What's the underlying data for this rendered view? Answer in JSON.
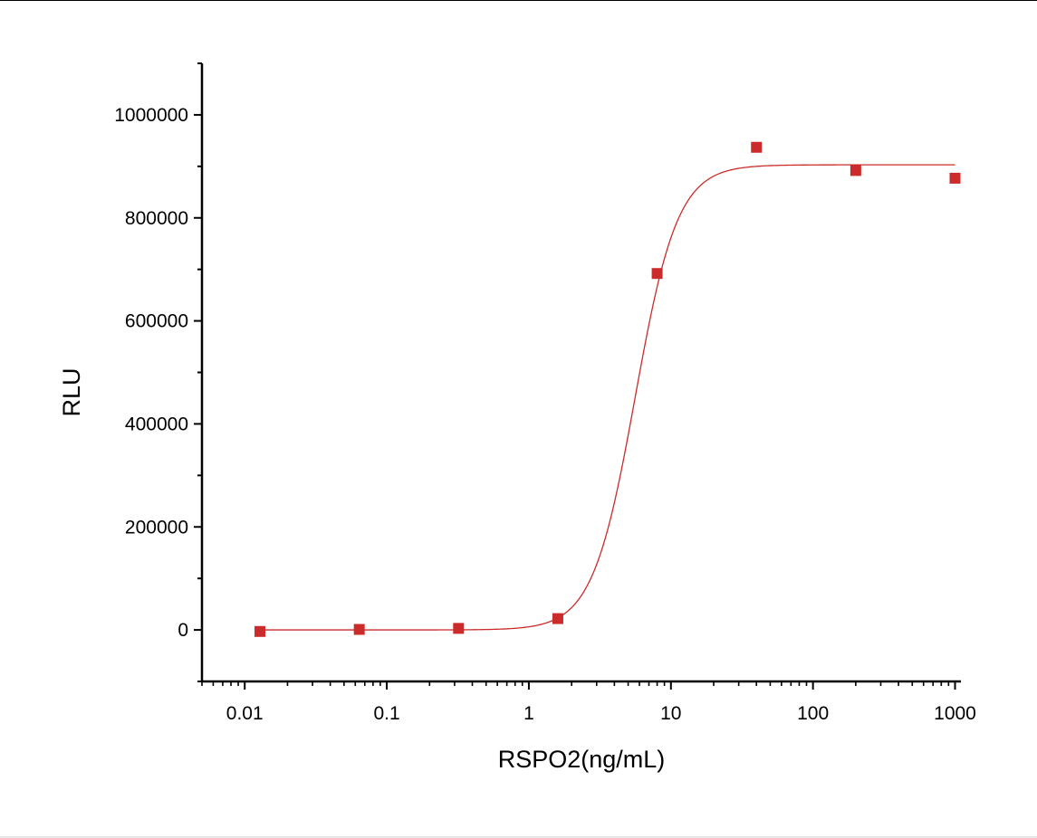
{
  "chart_data": {
    "type": "scatter",
    "title": "",
    "xlabel": "RSPO2(ng/mL)",
    "ylabel": "RLU",
    "x_scale": "log",
    "xlim": [
      0.005,
      1100
    ],
    "ylim": [
      -100000,
      1100000
    ],
    "x_ticks": [
      0.01,
      0.1,
      1,
      10,
      100,
      1000
    ],
    "x_tick_labels": [
      "0.01",
      "0.1",
      "1",
      "10",
      "100",
      "1000"
    ],
    "y_ticks": [
      0,
      200000,
      400000,
      600000,
      800000,
      1000000
    ],
    "y_tick_labels": [
      "0",
      "200000",
      "400000",
      "600000",
      "800000",
      "1000000"
    ],
    "grid": false,
    "legend": "none",
    "series": [
      {
        "marker": "square",
        "color": "#cc2b2b",
        "x": [
          0.0128,
          0.064,
          0.32,
          1.6,
          8,
          40,
          200,
          1000
        ],
        "y": [
          -3000,
          1000,
          3000,
          22000,
          692000,
          937000,
          892000,
          877000
        ]
      }
    ],
    "fit_curve": {
      "type": "4PL logistic",
      "color": "#cc2b2b",
      "bottom": 0,
      "top": 903000,
      "ec50": 5.6,
      "hill": 2.9
    }
  }
}
